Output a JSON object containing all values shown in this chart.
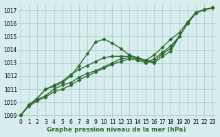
{
  "line1": [
    1009.0,
    1009.8,
    1010.3,
    1011.0,
    1011.2,
    1011.5,
    1012.0,
    1012.8,
    1013.7,
    1014.6,
    1014.8,
    1014.5,
    1014.1,
    1013.6,
    1013.4,
    1013.2,
    1013.1,
    1013.7,
    1014.1,
    1015.0,
    1016.0,
    1016.8,
    1017.05,
    1017.2
  ],
  "line2": [
    1009.0,
    1009.8,
    1010.3,
    1011.0,
    1011.3,
    1011.6,
    1012.1,
    1012.5,
    1012.8,
    1013.1,
    1013.4,
    1013.5,
    1013.5,
    1013.5,
    1013.4,
    1013.2,
    1013.6,
    1014.2,
    1014.8,
    1015.3,
    1016.1,
    1016.85,
    1017.05,
    1017.2
  ],
  "line3": [
    1009.0,
    1009.8,
    1010.2,
    1010.5,
    1011.0,
    1011.3,
    1011.5,
    1011.9,
    1012.2,
    1012.4,
    1012.7,
    1013.0,
    1013.3,
    1013.4,
    1013.3,
    1013.1,
    1013.0,
    1013.5,
    1013.9,
    1015.0,
    1016.0,
    1016.8,
    1017.05,
    1017.2
  ],
  "line4": [
    1009.0,
    1009.7,
    1010.1,
    1010.4,
    1010.8,
    1011.0,
    1011.3,
    1011.7,
    1012.0,
    1012.3,
    1012.6,
    1012.9,
    1013.1,
    1013.3,
    1013.2,
    1013.0,
    1013.3,
    1013.8,
    1014.3,
    1015.0,
    1016.0,
    1016.8,
    1017.05,
    1017.2
  ],
  "xlabel": "Graphe pression niveau de la mer (hPa)",
  "ylim_min": 1008.8,
  "ylim_max": 1017.5,
  "xlim_min": -0.3,
  "xlim_max": 23.3,
  "yticks": [
    1009,
    1010,
    1011,
    1012,
    1013,
    1014,
    1015,
    1016,
    1017
  ],
  "xticks": [
    0,
    1,
    2,
    3,
    4,
    5,
    6,
    7,
    8,
    9,
    10,
    11,
    12,
    13,
    14,
    15,
    16,
    17,
    18,
    19,
    20,
    21,
    22,
    23
  ],
  "line_color": "#2d6a2d",
  "bg_color": "#d8eeee",
  "grid_color": "#aacece",
  "marker": "D",
  "markersize": 2.5,
  "linewidth": 1.0,
  "tick_fontsize": 5.5,
  "xlabel_fontsize": 6.5
}
